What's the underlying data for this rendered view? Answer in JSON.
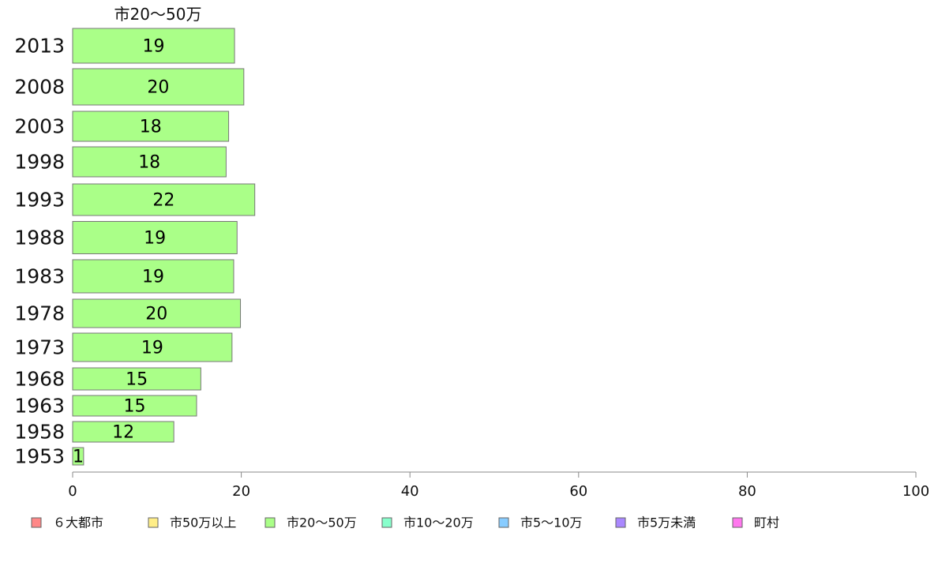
{
  "chart_data": {
    "type": "bar",
    "orientation": "horizontal",
    "title": "市20〜50万",
    "xlabel": "",
    "ylabel": "",
    "xlim": [
      0,
      100
    ],
    "x_ticks": [
      "0",
      "20",
      "40",
      "60",
      "80",
      "100"
    ],
    "x_tick_values": [
      0,
      20,
      40,
      60,
      80,
      100
    ],
    "grid": false,
    "categories": [
      "2013",
      "2008",
      "2003",
      "1998",
      "1993",
      "1988",
      "1983",
      "1978",
      "1973",
      "1968",
      "1963",
      "1958",
      "1953"
    ],
    "values": [
      19.2,
      20.3,
      18.5,
      18.2,
      21.6,
      19.5,
      19.1,
      19.9,
      18.9,
      15.2,
      14.7,
      12.0,
      1.3
    ],
    "value_labels": [
      "19",
      "20",
      "18",
      "18",
      "22",
      "19",
      "19",
      "20",
      "19",
      "15",
      "15",
      "12",
      "1"
    ],
    "series_color": "#aaff88",
    "legend_position": "bottom",
    "legend": [
      {
        "label": "６大都市",
        "color": "#ff8888"
      },
      {
        "label": "市50万以上",
        "color": "#ffee88"
      },
      {
        "label": "市20〜50万",
        "color": "#aaff88"
      },
      {
        "label": "市10〜20万",
        "color": "#88ffcc"
      },
      {
        "label": "市5〜10万",
        "color": "#88ccff"
      },
      {
        "label": "市5万未満",
        "color": "#aa88ff"
      },
      {
        "label": "町村",
        "color": "#ff77ee"
      }
    ]
  }
}
